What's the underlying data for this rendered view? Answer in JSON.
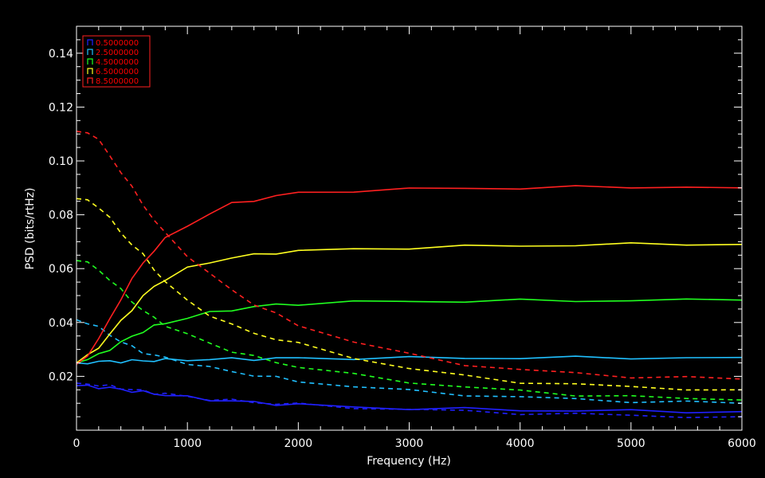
{
  "chart_data": {
    "type": "line",
    "xlabel": "Frequency (Hz)",
    "ylabel": "PSD (bits/rtHz)",
    "xlim": [
      0,
      6000
    ],
    "ylim": [
      0,
      0.15
    ],
    "x_ticks": [
      "0",
      "1000",
      "2000",
      "3000",
      "4000",
      "5000",
      "6000"
    ],
    "y_ticks": [
      "0.02",
      "0.04",
      "0.06",
      "0.08",
      "0.10",
      "0.12",
      "0.14"
    ],
    "grid": false,
    "legend_position": "top-left",
    "legend_entries": [
      {
        "label": "0.5000000",
        "color": "#2020ff"
      },
      {
        "label": "2.5000000",
        "color": "#20c0ff"
      },
      {
        "label": "4.5000000",
        "color": "#20ff20"
      },
      {
        "label": "6.5000000",
        "color": "#ffff20"
      },
      {
        "label": "8.5000000",
        "color": "#ff2020"
      }
    ],
    "x": [
      0,
      100,
      200,
      300,
      400,
      500,
      600,
      700,
      800,
      1000,
      1200,
      1400,
      1600,
      1800,
      2000,
      2500,
      3000,
      3500,
      4000,
      4500,
      5000,
      5500,
      6000
    ],
    "series": [
      {
        "name": "0.5000000",
        "style": "solid",
        "color": "#2020ff",
        "values": [
          0.0165,
          0.0163,
          0.016,
          0.0156,
          0.0151,
          0.0146,
          0.0141,
          0.0136,
          0.0131,
          0.0122,
          0.0114,
          0.0108,
          0.0103,
          0.0098,
          0.0094,
          0.0086,
          0.0081,
          0.0078,
          0.0075,
          0.0073,
          0.0071,
          0.007,
          0.0069
        ]
      },
      {
        "name": "0.5000000",
        "style": "dashed",
        "color": "#2020ff",
        "values": [
          0.0175,
          0.0172,
          0.0168,
          0.0163,
          0.0157,
          0.0151,
          0.0145,
          0.0139,
          0.0134,
          0.0124,
          0.0116,
          0.011,
          0.0104,
          0.0099,
          0.0095,
          0.0085,
          0.0077,
          0.007,
          0.0064,
          0.0059,
          0.0055,
          0.0052,
          0.005
        ]
      },
      {
        "name": "2.5000000",
        "style": "solid",
        "color": "#20c0ff",
        "values": [
          0.025,
          0.0252,
          0.0254,
          0.0255,
          0.0256,
          0.0257,
          0.0258,
          0.0259,
          0.026,
          0.0262,
          0.0263,
          0.0264,
          0.0265,
          0.0266,
          0.0267,
          0.0268,
          0.0268,
          0.0268,
          0.0269,
          0.0269,
          0.0269,
          0.0269,
          0.027
        ]
      },
      {
        "name": "2.5000000",
        "style": "dashed",
        "color": "#20c0ff",
        "values": [
          0.041,
          0.04,
          0.038,
          0.0355,
          0.033,
          0.0308,
          0.029,
          0.0278,
          0.0268,
          0.025,
          0.0232,
          0.0218,
          0.0205,
          0.0194,
          0.0183,
          0.0162,
          0.0146,
          0.0133,
          0.0122,
          0.0115,
          0.0108,
          0.0103,
          0.01
        ]
      },
      {
        "name": "4.5000000",
        "style": "solid",
        "color": "#20ff20",
        "values": [
          0.025,
          0.0262,
          0.028,
          0.0302,
          0.0325,
          0.0348,
          0.0368,
          0.0385,
          0.0398,
          0.0418,
          0.0435,
          0.0448,
          0.0458,
          0.0465,
          0.047,
          0.0476,
          0.0478,
          0.048,
          0.0481,
          0.0481,
          0.0482,
          0.0482,
          0.0483
        ]
      },
      {
        "name": "4.5000000",
        "style": "dashed",
        "color": "#20ff20",
        "values": [
          0.063,
          0.062,
          0.0595,
          0.056,
          0.052,
          0.048,
          0.0445,
          0.0415,
          0.0392,
          0.0355,
          0.0322,
          0.0295,
          0.0272,
          0.0253,
          0.0236,
          0.0205,
          0.018,
          0.016,
          0.0145,
          0.0133,
          0.0124,
          0.0117,
          0.0112
        ]
      },
      {
        "name": "6.5000000",
        "style": "solid",
        "color": "#ffff20",
        "values": [
          0.025,
          0.0275,
          0.031,
          0.0355,
          0.0405,
          0.045,
          0.0495,
          0.0535,
          0.056,
          0.06,
          0.0625,
          0.064,
          0.065,
          0.066,
          0.0665,
          0.0672,
          0.0678,
          0.0682,
          0.0685,
          0.0688,
          0.069,
          0.0692,
          0.069
        ]
      },
      {
        "name": "6.5000000",
        "style": "dashed",
        "color": "#ffff20",
        "values": [
          0.086,
          0.0855,
          0.083,
          0.0785,
          0.0735,
          0.069,
          0.065,
          0.06,
          0.055,
          0.048,
          0.043,
          0.039,
          0.036,
          0.034,
          0.032,
          0.027,
          0.023,
          0.02,
          0.018,
          0.017,
          0.016,
          0.0155,
          0.015
        ]
      },
      {
        "name": "8.5000000",
        "style": "solid",
        "color": "#ff2020",
        "values": [
          0.0245,
          0.028,
          0.034,
          0.041,
          0.049,
          0.056,
          0.062,
          0.067,
          0.071,
          0.076,
          0.0805,
          0.084,
          0.0855,
          0.087,
          0.088,
          0.089,
          0.0895,
          0.0898,
          0.09,
          0.0902,
          0.0903,
          0.0904,
          0.09
        ]
      },
      {
        "name": "8.5000000",
        "style": "dashed",
        "color": "#ff2020",
        "values": [
          0.111,
          0.111,
          0.1075,
          0.102,
          0.096,
          0.09,
          0.084,
          0.078,
          0.073,
          0.065,
          0.058,
          0.052,
          0.047,
          0.043,
          0.039,
          0.033,
          0.028,
          0.0245,
          0.0225,
          0.021,
          0.02,
          0.0195,
          0.019
        ]
      }
    ]
  }
}
